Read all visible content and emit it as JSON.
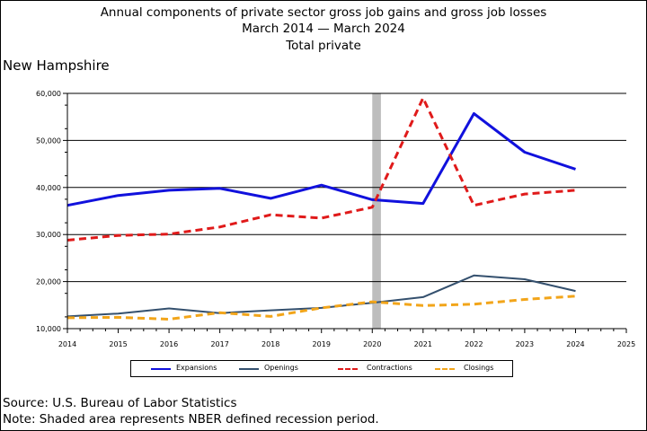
{
  "title": {
    "line1": "Annual components of private sector gross job gains and gross job losses",
    "line2": "March 2014 — March 2024",
    "line3": "Total private"
  },
  "region": "New Hampshire",
  "footer": {
    "source": "Source: U.S. Bureau of Labor Statistics",
    "note": "Note: Shaded area represents NBER defined recession period."
  },
  "colors": {
    "expansions": "#1111dd",
    "openings": "#34506e",
    "contractions": "#e01a1a",
    "closings": "#f2a51a",
    "recession": "#bdbdbd"
  },
  "chart_data": {
    "type": "line",
    "title": "Annual components of private sector gross job gains and gross job losses",
    "subtitle": "March 2014 — March 2024",
    "xlabel": "",
    "ylabel": "",
    "x": [
      2014,
      2015,
      2016,
      2017,
      2018,
      2019,
      2020,
      2021,
      2022,
      2023,
      2024
    ],
    "xlim": [
      2014,
      2025
    ],
    "xticks": [
      "2014",
      "2015",
      "2016",
      "2017",
      "2018",
      "2019",
      "2020",
      "2021",
      "2022",
      "2023",
      "2024",
      "2025"
    ],
    "ylim": [
      10000,
      60000
    ],
    "yticks": [
      "10,000",
      "20,000",
      "30,000",
      "40,000",
      "50,000",
      "60,000"
    ],
    "grid": "horizontal",
    "recession_shading": [
      2020.0,
      2020.17
    ],
    "legend_position": "bottom",
    "series": [
      {
        "name": "Expansions",
        "style": "solid",
        "values": [
          36200,
          38300,
          39400,
          39800,
          37700,
          40500,
          37400,
          36600,
          55700,
          47500,
          43900
        ]
      },
      {
        "name": "Openings",
        "style": "solid",
        "values": [
          12600,
          13200,
          14300,
          13300,
          13900,
          14400,
          15500,
          16700,
          21300,
          20500,
          18000
        ]
      },
      {
        "name": "Contractions",
        "style": "dashed",
        "values": [
          28800,
          29800,
          30100,
          31600,
          34200,
          33500,
          35800,
          59000,
          36200,
          38600,
          39400
        ]
      },
      {
        "name": "Closings",
        "style": "dashed",
        "values": [
          12300,
          12400,
          12000,
          13400,
          12600,
          14400,
          15700,
          14900,
          15200,
          16200,
          16900
        ]
      }
    ]
  }
}
